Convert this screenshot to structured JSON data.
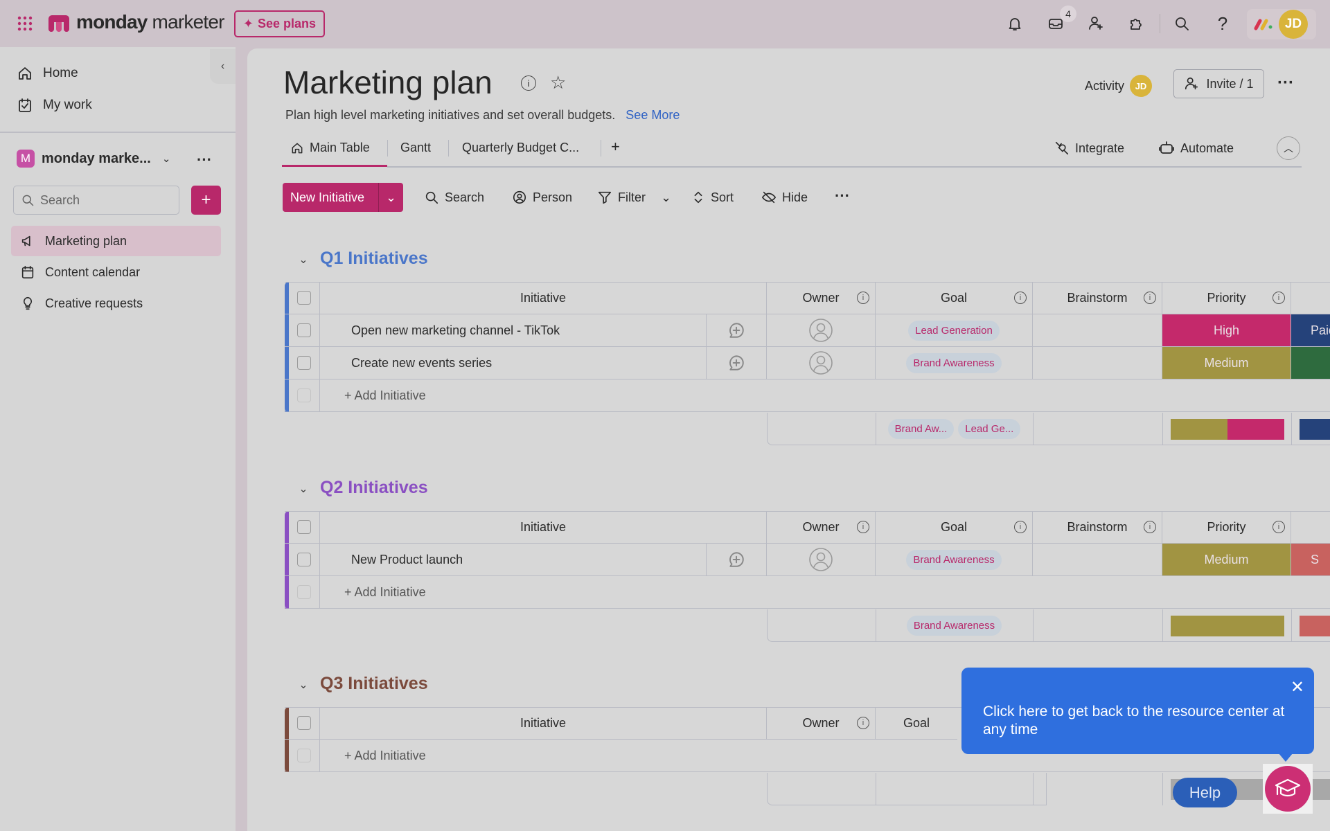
{
  "topbar": {
    "brand_bold": "monday",
    "brand_light": "marketer",
    "see_plans": "See plans",
    "inbox_count": "4",
    "avatar_initials": "JD",
    "icons": [
      "bell-icon",
      "inbox-icon",
      "invite-person-icon",
      "puzzle-icon",
      "search-icon",
      "help-icon"
    ]
  },
  "sidebar": {
    "home": "Home",
    "my_work": "My work",
    "workspace_initial": "M",
    "workspace_name": "monday marke...",
    "search_placeholder": "Search",
    "items": [
      {
        "label": "Marketing plan",
        "icon": "megaphone-icon",
        "active": true
      },
      {
        "label": "Content calendar",
        "icon": "calendar-icon"
      },
      {
        "label": "Creative requests",
        "icon": "lightbulb-icon"
      }
    ]
  },
  "board": {
    "title": "Marketing plan",
    "description": "Plan high level marketing initiatives and set overall budgets.",
    "see_more": "See More",
    "activity": "Activity",
    "activity_avatar": "JD",
    "invite": "Invite / 1",
    "tabs": [
      "Main Table",
      "Gantt",
      "Quarterly Budget C...",
      "+"
    ],
    "integrate": "Integrate",
    "automate": "Automate",
    "toolbar": {
      "new_item": "New Initiative",
      "search": "Search",
      "person": "Person",
      "filter": "Filter",
      "sort": "Sort",
      "hide": "Hide"
    }
  },
  "colors": {
    "accent": "#b8286a",
    "High": "#c4296b",
    "Medium": "#a19442",
    "tooltip": "#2f6fde"
  },
  "groups": [
    {
      "title": "Q1 Initiatives",
      "color": "#4a76c9",
      "columns": [
        "Initiative",
        "Owner",
        "Goal",
        "Brainstorm",
        "Priority"
      ],
      "rows": [
        {
          "name": "Open new marketing channel - TikTok",
          "goal": "Lead Generation",
          "priority": "High",
          "next": "Paid",
          "next_color": "#25427a"
        },
        {
          "name": "Create new events series",
          "goal": "Brand Awareness",
          "priority": "Medium",
          "next": "",
          "next_color": "#2e6b3e"
        }
      ],
      "add_label": "+ Add Initiative",
      "summary_goals": [
        "Brand Aw...",
        "Lead Ge..."
      ],
      "summary_priority": [
        {
          "label": "Medium",
          "share": 0.5
        },
        {
          "label": "High",
          "share": 0.5
        }
      ],
      "summary_next_color": "#25427a"
    },
    {
      "title": "Q2 Initiatives",
      "color": "#8a4fc2",
      "columns": [
        "Initiative",
        "Owner",
        "Goal",
        "Brainstorm",
        "Priority"
      ],
      "rows": [
        {
          "name": "New Product launch",
          "goal": "Brand Awareness",
          "priority": "Medium",
          "next": "S",
          "next_color": "#c8625f"
        }
      ],
      "add_label": "+ Add Initiative",
      "summary_goals": [
        "Brand Awareness"
      ],
      "summary_priority": [
        {
          "label": "Medium",
          "share": 1
        }
      ],
      "summary_next_color": "#c8625f"
    },
    {
      "title": "Q3 Initiatives",
      "color": "#7b4a3c",
      "columns": [
        "Initiative",
        "Owner",
        "Goal"
      ],
      "rows": [],
      "add_label": "+ Add Initiative",
      "summary_goals": [],
      "summary_priority": [],
      "summary_next_color": ""
    }
  ],
  "tooltip": {
    "text": "Click here to get back to the resource center at any time"
  },
  "help": {
    "label": "Help"
  }
}
